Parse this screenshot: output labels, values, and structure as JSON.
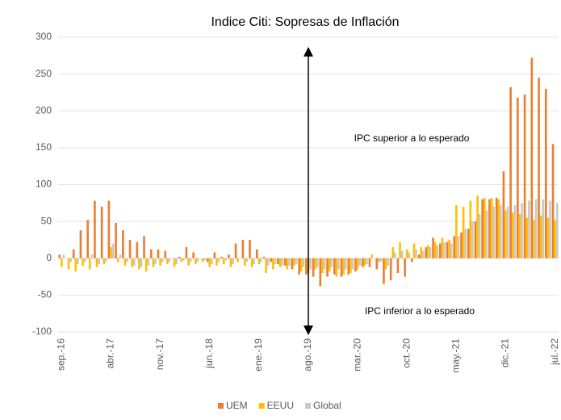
{
  "chart_data": {
    "type": "bar",
    "title": "Indice Citi: Sopresas de Inflación",
    "categories": [
      "sep.-16",
      null,
      null,
      null,
      null,
      null,
      null,
      "abr.-17",
      null,
      null,
      null,
      null,
      null,
      null,
      "nov.-17",
      null,
      null,
      null,
      null,
      null,
      null,
      "jun.-18",
      null,
      null,
      null,
      null,
      null,
      null,
      "ene.-19",
      null,
      null,
      null,
      null,
      null,
      null,
      "ago.-19",
      null,
      null,
      null,
      null,
      null,
      null,
      "mar.-20",
      null,
      null,
      null,
      null,
      null,
      null,
      "oct.-20",
      null,
      null,
      null,
      null,
      null,
      null,
      "may.-21",
      null,
      null,
      null,
      null,
      null,
      null,
      "dic.-21",
      null,
      null,
      null,
      null,
      null,
      null,
      "jul.-22"
    ],
    "series": [
      {
        "name": "UEM",
        "color": "#ed7d31",
        "values": [
          5,
          0,
          12,
          38,
          52,
          78,
          70,
          78,
          48,
          38,
          25,
          22,
          30,
          12,
          12,
          10,
          0,
          2,
          15,
          8,
          0,
          -5,
          8,
          2,
          5,
          20,
          25,
          25,
          12,
          2,
          -5,
          -8,
          -10,
          -15,
          -22,
          -22,
          -25,
          -38,
          -25,
          -22,
          -25,
          -22,
          -18,
          -12,
          -12,
          -15,
          -35,
          -30,
          -20,
          -25,
          -5,
          5,
          15,
          28,
          20,
          22,
          30,
          35,
          40,
          50,
          80,
          80,
          82,
          118,
          232,
          218,
          222,
          272,
          245,
          230,
          155
        ]
      },
      {
        "name": "EEUU",
        "color": "#ffc000",
        "values": [
          -12,
          -15,
          -18,
          -10,
          -15,
          -12,
          -8,
          15,
          -5,
          -10,
          -12,
          -15,
          -18,
          -12,
          -10,
          -8,
          -12,
          -5,
          -10,
          -8,
          -5,
          -12,
          -10,
          -8,
          -12,
          -5,
          -10,
          -12,
          -8,
          -20,
          -15,
          -12,
          -15,
          -10,
          -18,
          -20,
          -15,
          -20,
          -18,
          -25,
          -22,
          -20,
          -15,
          -10,
          5,
          -5,
          -15,
          15,
          22,
          12,
          20,
          15,
          18,
          22,
          28,
          25,
          72,
          70,
          78,
          85,
          82,
          82,
          80,
          65,
          62,
          60,
          55,
          52,
          58,
          55,
          52
        ]
      },
      {
        "name": "Global",
        "color": "#c9c9c9",
        "values": [
          5,
          -5,
          -8,
          -5,
          5,
          -8,
          -5,
          20,
          5,
          -5,
          -10,
          -12,
          -10,
          -8,
          -5,
          -5,
          -8,
          -3,
          -5,
          -5,
          -3,
          -8,
          -5,
          -3,
          -8,
          0,
          -5,
          -8,
          -5,
          -10,
          -8,
          -10,
          -10,
          -8,
          -12,
          -15,
          -12,
          -15,
          -12,
          -15,
          -15,
          -15,
          -10,
          -8,
          0,
          -5,
          -10,
          8,
          10,
          8,
          12,
          10,
          15,
          18,
          22,
          20,
          30,
          40,
          50,
          60,
          65,
          70,
          72,
          70,
          72,
          75,
          78,
          80,
          80,
          78,
          75
        ]
      }
    ],
    "ylim": [
      -100,
      300
    ],
    "yticks": [
      -100,
      -50,
      0,
      50,
      100,
      150,
      200,
      250,
      300
    ],
    "grid": true,
    "annotations": [
      "IPC superior a lo esperado",
      "IPC inferior a lo esperado"
    ],
    "legend": "bottom"
  }
}
